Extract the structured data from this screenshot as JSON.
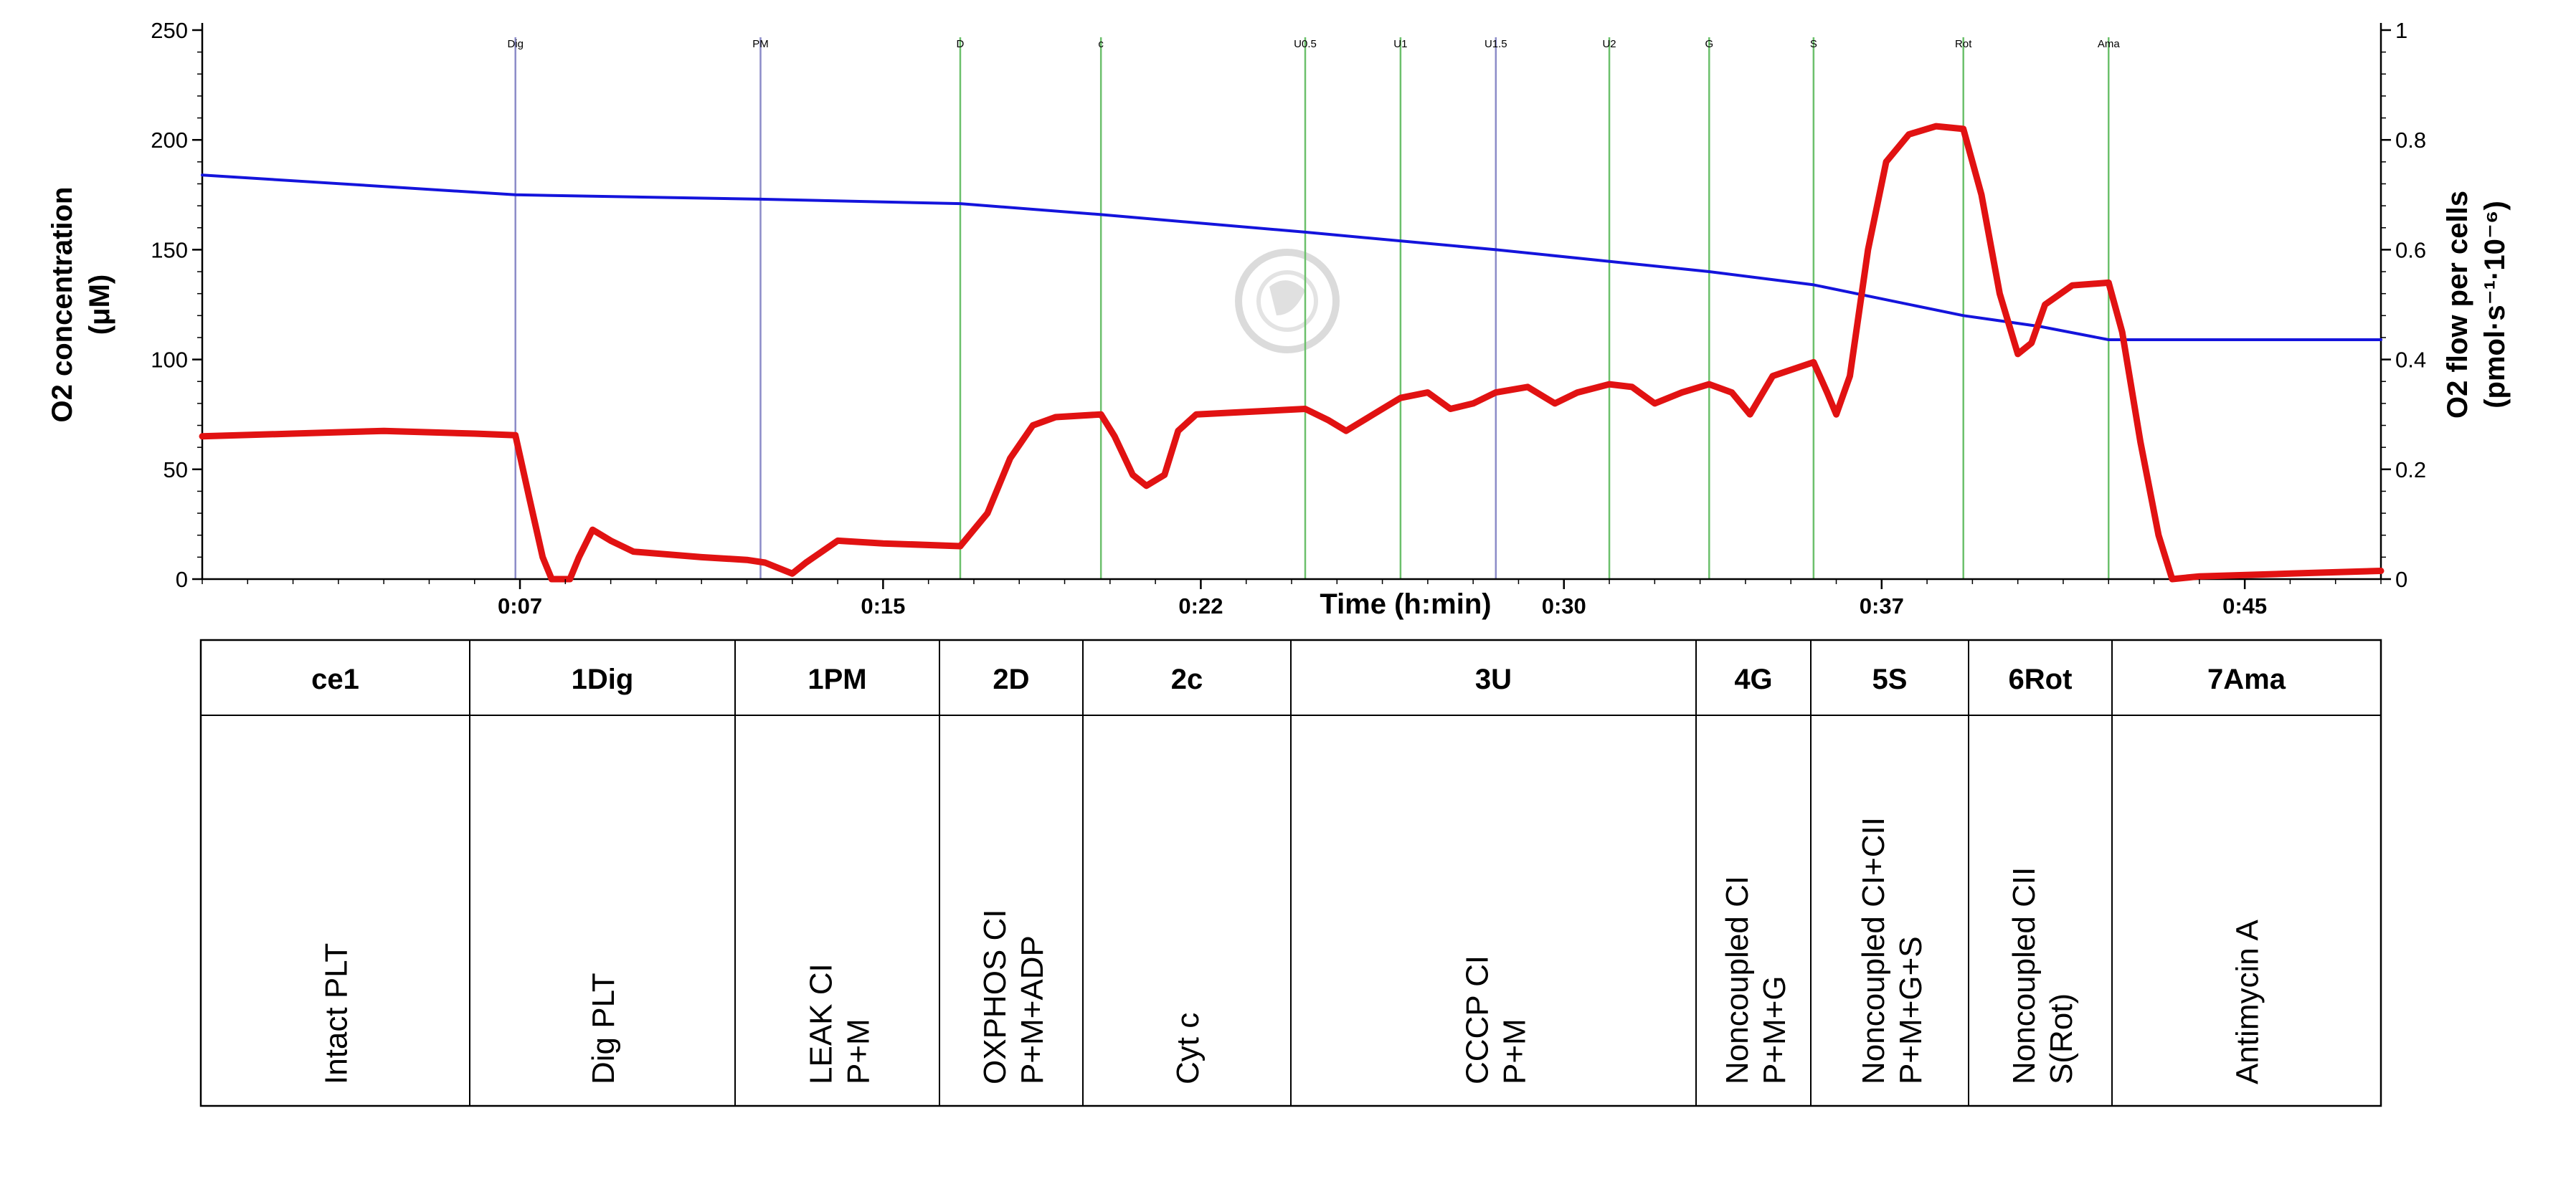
{
  "chart_data": {
    "type": "line",
    "xlabel": "Time (h:min)",
    "x_unit": "min",
    "xlim": [
      0,
      48
    ],
    "x_ticks": [
      {
        "value": 7,
        "label": "0:07"
      },
      {
        "value": 15,
        "label": "0:15"
      },
      {
        "value": 22,
        "label": "0:22"
      },
      {
        "value": 30,
        "label": "0:30"
      },
      {
        "value": 37,
        "label": "0:37"
      },
      {
        "value": 45,
        "label": "0:45"
      }
    ],
    "y_left": {
      "label_line1": "O2 concentration",
      "label_line2": "(μM)",
      "lim": [
        0,
        250
      ],
      "ticks": [
        "0",
        "50",
        "100",
        "150",
        "200",
        "250"
      ]
    },
    "y_right": {
      "label_line1": "O2 flow per cells",
      "label_line2": "(pmol·s⁻¹·10⁻⁶)",
      "lim": [
        0,
        1
      ],
      "ticks": [
        "0",
        "0.2",
        "0.4",
        "0.6",
        "0.8",
        "1"
      ]
    },
    "markers": [
      {
        "label": "Dig",
        "t": 6.9,
        "color": "#8c8cc8"
      },
      {
        "label": "PM",
        "t": 12.3,
        "color": "#8c8cc8"
      },
      {
        "label": "D",
        "t": 16.7,
        "color": "#6cc06c"
      },
      {
        "label": "c",
        "t": 19.8,
        "color": "#6cc06c"
      },
      {
        "label": "U0.5",
        "t": 24.3,
        "color": "#6cc06c"
      },
      {
        "label": "U1",
        "t": 26.4,
        "color": "#6cc06c"
      },
      {
        "label": "U1.5",
        "t": 28.5,
        "color": "#8c8cc8"
      },
      {
        "label": "U2",
        "t": 31.0,
        "color": "#6cc06c"
      },
      {
        "label": "G",
        "t": 33.2,
        "color": "#6cc06c"
      },
      {
        "label": "S",
        "t": 35.5,
        "color": "#6cc06c"
      },
      {
        "label": "Rot",
        "t": 38.8,
        "color": "#6cc06c"
      },
      {
        "label": "Ama",
        "t": 42.0,
        "color": "#6cc06c"
      }
    ],
    "series": [
      {
        "name": "O2 concentration",
        "axis": "left",
        "color": "#1414dc",
        "points": [
          [
            0,
            184
          ],
          [
            6.9,
            175
          ],
          [
            12.3,
            173
          ],
          [
            16.7,
            171
          ],
          [
            19.8,
            166
          ],
          [
            24.3,
            158
          ],
          [
            28.5,
            150
          ],
          [
            33.2,
            140
          ],
          [
            35.5,
            134
          ],
          [
            38.8,
            120
          ],
          [
            40.5,
            115
          ],
          [
            42.0,
            109
          ],
          [
            48,
            109
          ]
        ]
      },
      {
        "name": "O2 flow per cells",
        "axis": "right",
        "color": "#e11212",
        "points": [
          [
            0,
            0.26
          ],
          [
            2,
            0.265
          ],
          [
            4,
            0.27
          ],
          [
            6,
            0.265
          ],
          [
            6.9,
            0.262
          ],
          [
            7.2,
            0.15
          ],
          [
            7.5,
            0.04
          ],
          [
            7.7,
            0.0
          ],
          [
            8.1,
            0.0
          ],
          [
            8.3,
            0.04
          ],
          [
            8.6,
            0.09
          ],
          [
            9.0,
            0.07
          ],
          [
            9.5,
            0.05
          ],
          [
            11,
            0.04
          ],
          [
            12.0,
            0.035
          ],
          [
            12.4,
            0.03
          ],
          [
            12.7,
            0.02
          ],
          [
            13.0,
            0.01
          ],
          [
            13.3,
            0.03
          ],
          [
            14,
            0.07
          ],
          [
            15,
            0.065
          ],
          [
            16.7,
            0.06
          ],
          [
            17.3,
            0.12
          ],
          [
            17.8,
            0.22
          ],
          [
            18.3,
            0.28
          ],
          [
            18.8,
            0.295
          ],
          [
            19.8,
            0.3
          ],
          [
            20.1,
            0.26
          ],
          [
            20.5,
            0.19
          ],
          [
            20.8,
            0.17
          ],
          [
            21.2,
            0.19
          ],
          [
            21.5,
            0.27
          ],
          [
            21.9,
            0.3
          ],
          [
            24.3,
            0.31
          ],
          [
            24.8,
            0.29
          ],
          [
            25.2,
            0.27
          ],
          [
            25.8,
            0.3
          ],
          [
            26.4,
            0.33
          ],
          [
            27.0,
            0.34
          ],
          [
            27.5,
            0.31
          ],
          [
            28.0,
            0.32
          ],
          [
            28.5,
            0.34
          ],
          [
            29.2,
            0.35
          ],
          [
            29.8,
            0.32
          ],
          [
            30.3,
            0.34
          ],
          [
            31.0,
            0.355
          ],
          [
            31.5,
            0.35
          ],
          [
            32.0,
            0.32
          ],
          [
            32.6,
            0.34
          ],
          [
            33.2,
            0.355
          ],
          [
            33.7,
            0.34
          ],
          [
            34.1,
            0.3
          ],
          [
            34.6,
            0.37
          ],
          [
            35.5,
            0.395
          ],
          [
            35.8,
            0.34
          ],
          [
            36.0,
            0.3
          ],
          [
            36.3,
            0.37
          ],
          [
            36.7,
            0.6
          ],
          [
            37.1,
            0.76
          ],
          [
            37.6,
            0.81
          ],
          [
            38.2,
            0.825
          ],
          [
            38.8,
            0.82
          ],
          [
            39.2,
            0.7
          ],
          [
            39.6,
            0.52
          ],
          [
            40.0,
            0.41
          ],
          [
            40.3,
            0.43
          ],
          [
            40.6,
            0.5
          ],
          [
            41.2,
            0.535
          ],
          [
            42.0,
            0.54
          ],
          [
            42.3,
            0.45
          ],
          [
            42.7,
            0.25
          ],
          [
            43.1,
            0.08
          ],
          [
            43.4,
            0.0
          ],
          [
            44,
            0.005
          ],
          [
            46,
            0.01
          ],
          [
            48,
            0.015
          ]
        ]
      }
    ]
  },
  "protocol_table": {
    "columns": [
      {
        "header": "ce1",
        "line1": "Intact PLT",
        "line2": ""
      },
      {
        "header": "1Dig",
        "line1": "Dig PLT",
        "line2": ""
      },
      {
        "header": "1PM",
        "line1": "LEAK CI",
        "line2": "P+M"
      },
      {
        "header": "2D",
        "line1": "OXPHOS CI",
        "line2": "P+M+ADP"
      },
      {
        "header": "2c",
        "line1": "Cyt c",
        "line2": ""
      },
      {
        "header": "3U",
        "line1": "CCCP CI",
        "line2": "P+M"
      },
      {
        "header": "4G",
        "line1": "Noncoupled CI",
        "line2": "P+M+G"
      },
      {
        "header": "5S",
        "line1": "Noncoupled CI+CII",
        "line2": "P+M+G+S"
      },
      {
        "header": "6Rot",
        "line1": "Noncoupled CII",
        "line2": "S(Rot)"
      },
      {
        "header": "7Ama",
        "line1": "Antimycin A",
        "line2": ""
      }
    ]
  }
}
